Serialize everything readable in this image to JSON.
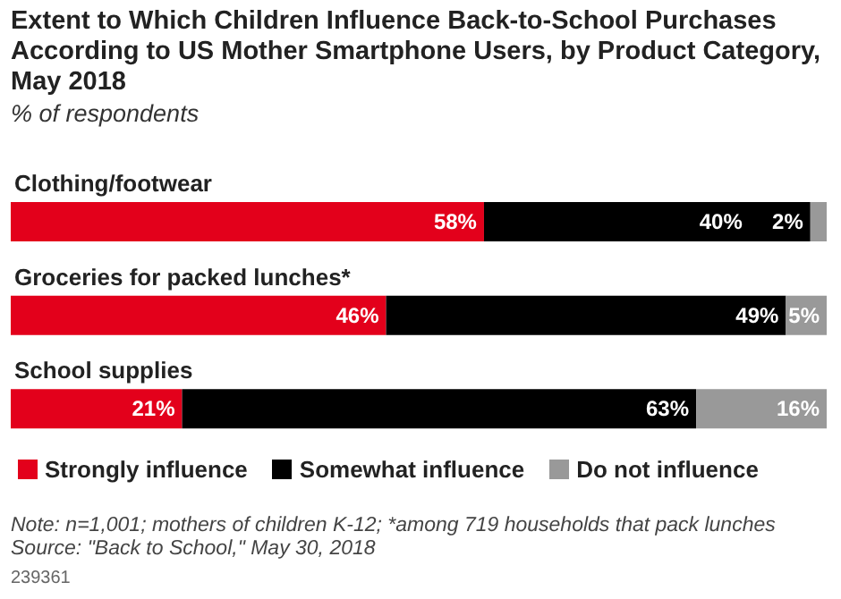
{
  "chart_data": {
    "type": "bar",
    "orientation": "horizontal",
    "stacked": true,
    "title": "Extent to Which Children Influence Back-to-School Purchases According to US Mother Smartphone Users, by Product Category, May 2018",
    "subtitle": "% of respondents",
    "categories": [
      "Clothing/footwear",
      "Groceries for packed lunches*",
      "School supplies"
    ],
    "series": [
      {
        "name": "Strongly influence",
        "color": "#e3001b",
        "values": [
          58,
          46,
          21
        ],
        "value_labels": [
          "58%",
          "46%",
          "21%"
        ]
      },
      {
        "name": "Somewhat influence",
        "color": "#000000",
        "values": [
          40,
          49,
          63
        ],
        "value_labels": [
          "40%",
          "49%",
          "63%"
        ]
      },
      {
        "name": "Do not influence",
        "color": "#999999",
        "values": [
          2,
          5,
          16
        ],
        "value_labels": [
          "2%",
          "5%",
          "16%"
        ]
      }
    ],
    "legend": "bottom",
    "tick_labels": "y",
    "annotations": [
      "Note: n=1,001; mothers of children K-12; *among 719 households that pack lunches",
      "Source: \"Back to School,\" May 30, 2018",
      "239361"
    ]
  }
}
